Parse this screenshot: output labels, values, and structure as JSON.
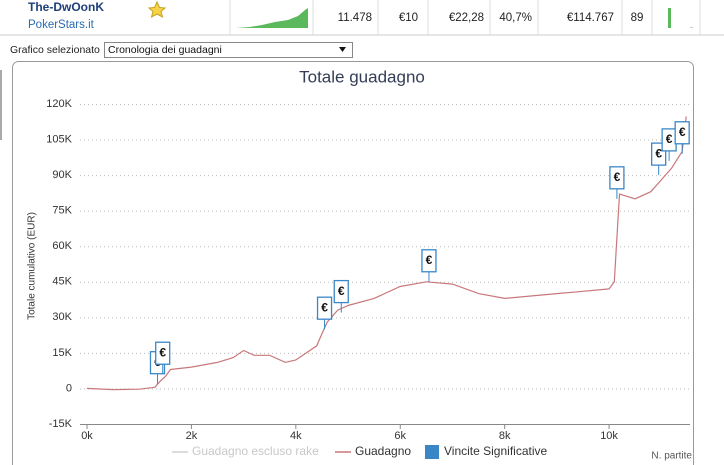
{
  "header": {
    "player": "The-DwOonK",
    "site": "PokerStars.it",
    "cells": [
      "11.478",
      "€10",
      "€22,28",
      "40,7%",
      "€114.767",
      "89"
    ]
  },
  "selector": {
    "label": "Grafico selezionato",
    "value": "Cronologia dei guadagni"
  },
  "chart_data": {
    "type": "line",
    "title": "Totale guadagno",
    "y_label": "Totale cumulativo (EUR)",
    "x_label": "N. partite",
    "x": [
      0,
      500,
      1000,
      1300,
      1400,
      1500,
      1600,
      2000,
      2500,
      2800,
      3000,
      3200,
      3500,
      3800,
      4000,
      4200,
      4400,
      4500,
      4600,
      4800,
      5000,
      5500,
      6000,
      6500,
      7000,
      7500,
      8000,
      8500,
      9000,
      9500,
      10000,
      10100,
      10200,
      10500,
      10800,
      11000,
      11200,
      11400,
      11478
    ],
    "series": [
      {
        "name": "Guadagno escluso rake",
        "color": "#d0d0d0",
        "visible": false
      },
      {
        "name": "Guadagno",
        "color": "#c8787c",
        "values": [
          0,
          -500,
          -300,
          500,
          3000,
          5000,
          8000,
          9000,
          11000,
          13000,
          16000,
          14000,
          14000,
          11000,
          12000,
          15000,
          18000,
          23000,
          28000,
          33000,
          35000,
          38000,
          43000,
          45000,
          44000,
          40000,
          38000,
          39000,
          40000,
          41000,
          42000,
          45000,
          82000,
          80000,
          83000,
          88000,
          93000,
          100000,
          114767
        ]
      }
    ],
    "significant_wins": {
      "name": "Vincite Significative",
      "color": "#3a87c8",
      "x": [
        1350,
        1450,
        4550,
        4870,
        6550,
        10150,
        10950,
        11150,
        11400
      ],
      "values": [
        2000,
        6000,
        25000,
        32000,
        45000,
        80000,
        90000,
        96000,
        99000
      ]
    },
    "xlim": [
      0,
      11550
    ],
    "ylim": [
      -15000,
      120000
    ],
    "xticks": [
      {
        "value": 0,
        "label": "0k"
      },
      {
        "value": 2000,
        "label": "2k"
      },
      {
        "value": 4000,
        "label": "4k"
      },
      {
        "value": 6000,
        "label": "6k"
      },
      {
        "value": 8000,
        "label": "8k"
      },
      {
        "value": 10000,
        "label": "10k"
      }
    ],
    "yticks": [
      {
        "value": -15000,
        "label": "-15K"
      },
      {
        "value": 0,
        "label": "0"
      },
      {
        "value": 15000,
        "label": "15K"
      },
      {
        "value": 30000,
        "label": "30K"
      },
      {
        "value": 45000,
        "label": "45K"
      },
      {
        "value": 60000,
        "label": "60K"
      },
      {
        "value": 75000,
        "label": "75K"
      },
      {
        "value": 90000,
        "label": "90K"
      },
      {
        "value": 105000,
        "label": "105K"
      },
      {
        "value": 120000,
        "label": "120K"
      }
    ],
    "grid": true
  }
}
